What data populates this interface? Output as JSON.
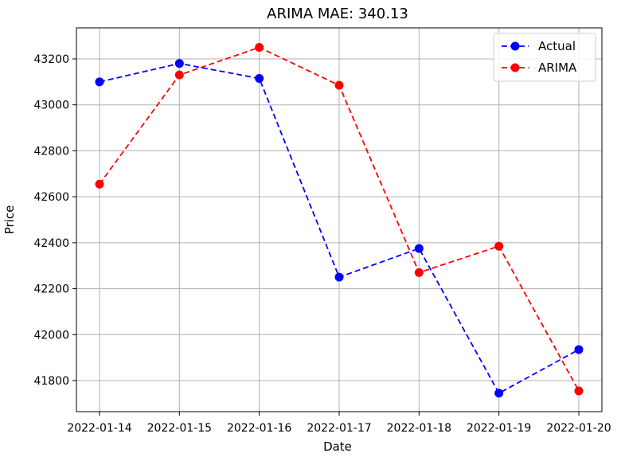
{
  "chart_data": {
    "type": "line",
    "title": "ARIMA MAE: 340.13",
    "xlabel": "Date",
    "ylabel": "Price",
    "categories": [
      "2022-01-14",
      "2022-01-15",
      "2022-01-16",
      "2022-01-17",
      "2022-01-18",
      "2022-01-19",
      "2022-01-20"
    ],
    "yticks": [
      41800,
      42000,
      42200,
      42400,
      42600,
      42800,
      43000,
      43200
    ],
    "ylim": [
      41665,
      43335
    ],
    "grid": true,
    "legend_position": "top-right",
    "series": [
      {
        "name": "Actual",
        "color": "#0000ff",
        "values": [
          43100,
          43180,
          43115,
          42250,
          42375,
          41745,
          41935
        ]
      },
      {
        "name": "ARIMA",
        "color": "#ff0000",
        "values": [
          42655,
          43130,
          43250,
          43085,
          42270,
          42385,
          41755
        ]
      }
    ]
  }
}
